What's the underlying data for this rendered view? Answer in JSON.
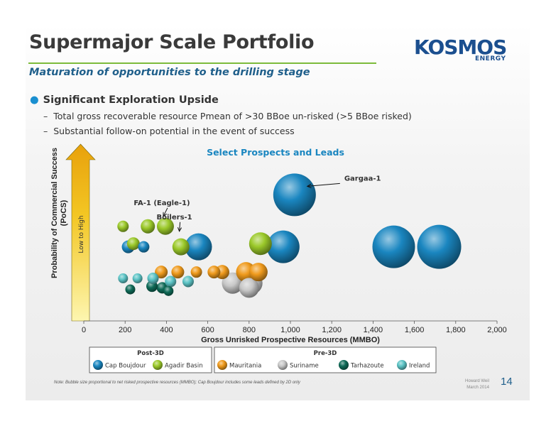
{
  "slide": {
    "title": "Supermajor Scale Portfolio",
    "subtitle": "Maturation of opportunities to the drilling stage",
    "logo_main": "KOSMOS",
    "logo_sub": "ENERGY",
    "bullet": "Significant Exploration Upside",
    "sub_bullets": [
      "Total gross recoverable resource Pmean of >30 BBoe un-risked (>5 BBoe risked)",
      "Substantial follow-on potential in the event of success"
    ],
    "note": "Note: Bubble size proportional to net risked prospective resources (MMBO); Cap Boujdour includes some leads defined by 2D only",
    "footer_line1": "Howard Weil",
    "footer_line2": "March 2014",
    "page_number": "14"
  },
  "chart_data": {
    "type": "scatter",
    "title": "Select Prospects and Leads",
    "xlabel": "Gross Unrisked Prospective Resources (MMBO)",
    "ylabel_line1": "Probability of Commercial Success",
    "ylabel_line2": "(PoCS)",
    "arrow_label": "Low to High",
    "xlim": [
      0,
      2000
    ],
    "xticks": [
      "0",
      "200",
      "400",
      "600",
      "800",
      "1,000",
      "1,200",
      "1,400",
      "1,600",
      "1,800",
      "2,000"
    ],
    "ylim": [
      0,
      1
    ],
    "legend": {
      "group_post": "Post-3D",
      "group_pre": "Pre-3D"
    },
    "colors": {
      "Cap Boujdour": "#1a86c0",
      "Agadir Basin": "#9bc92a",
      "Mauritania": "#ef9a1c",
      "Suriname": "#c8c8c8",
      "Tarhazoute": "#0f6b58",
      "Ireland": "#5cc4c6"
    },
    "annotations": [
      {
        "text": "Gargaa-1",
        "x": 1020,
        "y": 0.8
      },
      {
        "text": "FA-1 (Eagle-1)",
        "x": 395,
        "y": 0.6
      },
      {
        "text": "Boilers-1",
        "x": 490,
        "y": 0.51
      }
    ],
    "series": [
      {
        "name": "Cap Boujdour",
        "points": [
          {
            "x": 1020,
            "y": 0.8,
            "size": 30
          },
          {
            "x": 1500,
            "y": 0.47,
            "size": 30
          },
          {
            "x": 1720,
            "y": 0.47,
            "size": 31
          },
          {
            "x": 965,
            "y": 0.47,
            "size": 23
          },
          {
            "x": 555,
            "y": 0.47,
            "size": 19
          },
          {
            "x": 215,
            "y": 0.47,
            "size": 9
          },
          {
            "x": 290,
            "y": 0.47,
            "size": 8
          }
        ]
      },
      {
        "name": "Agadir Basin",
        "points": [
          {
            "x": 395,
            "y": 0.6,
            "size": 12
          },
          {
            "x": 310,
            "y": 0.6,
            "size": 10
          },
          {
            "x": 190,
            "y": 0.6,
            "size": 8
          },
          {
            "x": 470,
            "y": 0.47,
            "size": 12
          },
          {
            "x": 855,
            "y": 0.49,
            "size": 16
          },
          {
            "x": 240,
            "y": 0.49,
            "size": 9
          }
        ]
      },
      {
        "name": "Mauritania",
        "points": [
          {
            "x": 785,
            "y": 0.31,
            "size": 14
          },
          {
            "x": 845,
            "y": 0.31,
            "size": 13
          },
          {
            "x": 670,
            "y": 0.31,
            "size": 10
          },
          {
            "x": 630,
            "y": 0.31,
            "size": 9
          },
          {
            "x": 545,
            "y": 0.31,
            "size": 8
          },
          {
            "x": 455,
            "y": 0.31,
            "size": 9
          },
          {
            "x": 375,
            "y": 0.31,
            "size": 9
          }
        ]
      },
      {
        "name": "Suriname",
        "points": [
          {
            "x": 720,
            "y": 0.24,
            "size": 15
          },
          {
            "x": 810,
            "y": 0.24,
            "size": 16
          },
          {
            "x": 800,
            "y": 0.21,
            "size": 14
          }
        ]
      },
      {
        "name": "Tarhazoute",
        "points": [
          {
            "x": 225,
            "y": 0.2,
            "size": 7
          },
          {
            "x": 380,
            "y": 0.21,
            "size": 8
          },
          {
            "x": 410,
            "y": 0.19,
            "size": 7
          },
          {
            "x": 330,
            "y": 0.22,
            "size": 8
          }
        ]
      },
      {
        "name": "Ireland",
        "points": [
          {
            "x": 190,
            "y": 0.27,
            "size": 7
          },
          {
            "x": 260,
            "y": 0.27,
            "size": 7
          },
          {
            "x": 335,
            "y": 0.27,
            "size": 8
          },
          {
            "x": 420,
            "y": 0.25,
            "size": 8
          },
          {
            "x": 505,
            "y": 0.25,
            "size": 8
          }
        ]
      }
    ]
  }
}
